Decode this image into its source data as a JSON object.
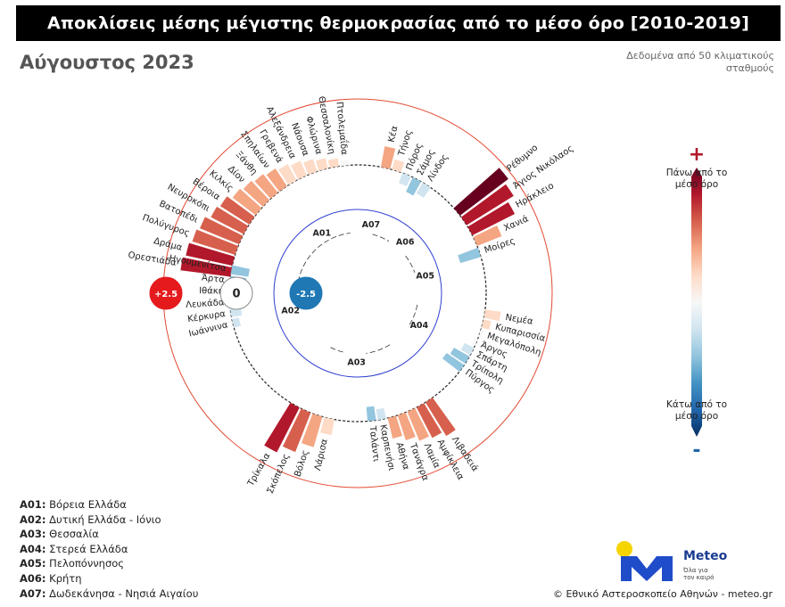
{
  "title": "Αποκλίσεις μέσης μέγιστης θερμοκρασίας από το μέσο όρο [2010-2019]",
  "subtitle": "Αύγουστος 2023",
  "note": "Δεδομένα από 50 κλιματικούς σταθμούς",
  "footer": "© Εθνικό Αστεροσκοπείο Αθηνών - meteo.gr",
  "logo": {
    "name": "Meteo",
    "slogan": "Όλα για τον καιρό"
  },
  "colorbar": {
    "plus": "+",
    "minus": "-",
    "top_label": "Πάνω από το μέσο όρο",
    "bottom_label": "Κάτω από το μέσο όρο",
    "colors": [
      "#67001f",
      "#b2182b",
      "#d6604d",
      "#f4a582",
      "#fddbc7",
      "#f7f7f7",
      "#d1e5f0",
      "#92c5de",
      "#4393c3",
      "#2166ac",
      "#053061"
    ]
  },
  "regions_legend": [
    {
      "code": "A01:",
      "name": "Βόρεια Ελλάδα"
    },
    {
      "code": "A02:",
      "name": "Δυτική Ελλάδα - Ιόνιο"
    },
    {
      "code": "A03:",
      "name": "Θεσσαλία"
    },
    {
      "code": "A04:",
      "name": "Στερεά Ελλάδα"
    },
    {
      "code": "A05:",
      "name": "Πελοπόννησος"
    },
    {
      "code": "A06:",
      "name": "Κρήτη"
    },
    {
      "code": "A07:",
      "name": "Δωδεκάνησα - Νησιά Αιγαίου"
    }
  ],
  "chart_data": {
    "type": "bar",
    "layout": "circular",
    "ylim": [
      -2.5,
      2.5
    ],
    "ring_labels": [
      "+2.5",
      "0",
      "-2.5"
    ],
    "ring_colors": {
      "plus": "#e41a1c",
      "zero": "#ffffff",
      "minus": "#1f78b4"
    },
    "groups": [
      {
        "code": "A01",
        "stations": [
          {
            "name": "Ορεστιάδα",
            "value": 1.9
          },
          {
            "name": "Δράμα",
            "value": 1.8
          },
          {
            "name": "Πολύγυρος",
            "value": 1.7
          },
          {
            "name": "Βατοπέδι",
            "value": 1.6
          },
          {
            "name": "Νευροκόπι",
            "value": 1.4
          },
          {
            "name": "Βέροια",
            "value": 1.3
          },
          {
            "name": "Κιλκίς",
            "value": 1.1
          },
          {
            "name": "Δίον",
            "value": 1.0
          },
          {
            "name": "Ξάνθη",
            "value": 0.9
          },
          {
            "name": "Σπηλαίων",
            "value": 0.8
          },
          {
            "name": "Γρεβενά",
            "value": 0.7
          },
          {
            "name": "Αλεξάνδρεια",
            "value": 0.6
          },
          {
            "name": "Νάουσα",
            "value": 0.5
          },
          {
            "name": "Φλώρινα",
            "value": 0.4
          },
          {
            "name": "Θεσσαλονίκη",
            "value": 0.3
          },
          {
            "name": "Πτολεμαΐδα",
            "value": 0.2
          }
        ]
      },
      {
        "code": "A07",
        "stations": [
          {
            "name": "Κέα",
            "value": 0.8
          },
          {
            "name": "Τήνος",
            "value": 0.4
          },
          {
            "name": "Πόρος",
            "value": -0.6
          },
          {
            "name": "Σάμος",
            "value": -0.9
          },
          {
            "name": "Λίνδος",
            "value": -0.7
          }
        ]
      },
      {
        "code": "A06",
        "stations": [
          {
            "name": "Ρέθυμνο",
            "value": 2.3
          },
          {
            "name": "Άγιος Νικόλαος",
            "value": 2.1
          },
          {
            "name": "Ηράκλειο",
            "value": 1.8
          },
          {
            "name": "Χανιά",
            "value": 1.0
          },
          {
            "name": "Μοίρες",
            "value": -1.2
          }
        ]
      },
      {
        "code": "A05",
        "stations": [
          {
            "name": "Νεμέα",
            "value": 0.6
          },
          {
            "name": "Κυπαρισσία",
            "value": 0.3
          },
          {
            "name": "Μεγαλόπολη",
            "value": 0.1
          },
          {
            "name": "Άργος",
            "value": -0.2
          },
          {
            "name": "Σπάρτη",
            "value": -0.6
          },
          {
            "name": "Τρίπολη",
            "value": -1.0
          },
          {
            "name": "Πύργος",
            "value": -1.2
          }
        ]
      },
      {
        "code": "A04",
        "stations": [
          {
            "name": "Λιβαδειά",
            "value": 1.5
          },
          {
            "name": "Αμφίκλεια",
            "value": 1.3
          },
          {
            "name": "Λαμία",
            "value": 1.2
          },
          {
            "name": "Τανάγρα",
            "value": 1.0
          },
          {
            "name": "Αθήνα",
            "value": 0.8
          },
          {
            "name": "Καρπενήσι",
            "value": -0.6
          },
          {
            "name": "Ταλάντι",
            "value": -0.8
          }
        ]
      },
      {
        "code": "A03",
        "stations": [
          {
            "name": "Λάρισα",
            "value": 0.6
          },
          {
            "name": "Βόλος",
            "value": 1.2
          },
          {
            "name": "Σκόπελος",
            "value": 1.6
          },
          {
            "name": "Τρίκαλα",
            "value": 1.9
          }
        ]
      },
      {
        "code": "A02",
        "stations": [
          {
            "name": "Ιωάννινα",
            "value": -0.4
          },
          {
            "name": "Κέρκυρα",
            "value": -0.6
          },
          {
            "name": "Λευκάδα",
            "value": -0.7
          },
          {
            "name": "Ιθάκη",
            "value": -0.8
          },
          {
            "name": "Άρτα",
            "value": -0.9
          },
          {
            "name": "Ηγουμενίτσα",
            "value": -1.0
          }
        ]
      }
    ]
  }
}
